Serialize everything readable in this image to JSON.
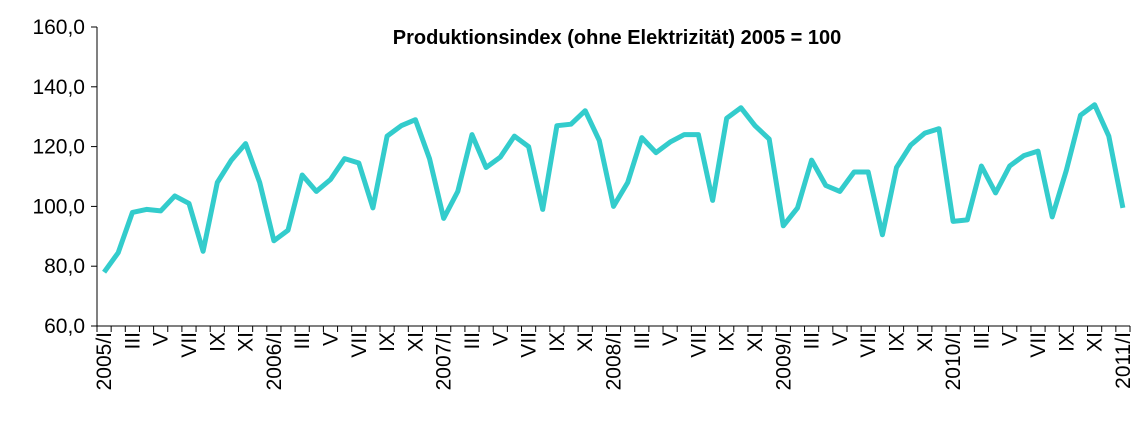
{
  "chart_data": {
    "type": "line",
    "title": "Produktionsindex (ohne Elektrizität) 2005 = 100",
    "categories": [
      "2005/I",
      null,
      "III",
      null,
      "V",
      null,
      "VII",
      null,
      "IX",
      null,
      "XI",
      null,
      "2006/I",
      null,
      "III",
      null,
      "V",
      null,
      "VII",
      null,
      "IX",
      null,
      "XI",
      null,
      "2007/I",
      null,
      "III",
      null,
      "V",
      null,
      "VII",
      null,
      "IX",
      null,
      "XI",
      null,
      "2008/I",
      null,
      "III",
      null,
      "V",
      null,
      "VII",
      null,
      "IX",
      null,
      "XI",
      null,
      "2009/I",
      null,
      "III",
      null,
      "V",
      null,
      "VII",
      null,
      "IX",
      null,
      "XI",
      null,
      "2010/I",
      null,
      "III",
      null,
      "V",
      null,
      "VII",
      null,
      "IX",
      null,
      "XI",
      null,
      "2011/I"
    ],
    "series": [
      {
        "name": "Produktionsindex",
        "color": "#33cccc",
        "values": [
          78,
          84.5,
          98,
          99,
          98.5,
          103.5,
          101,
          85,
          108,
          115.5,
          121,
          108,
          88.5,
          92,
          110.5,
          105,
          109,
          116,
          114.5,
          99.5,
          123.5,
          127,
          129,
          116,
          96,
          105,
          124,
          113,
          116.5,
          123.5,
          120,
          99,
          127,
          127.5,
          132,
          122,
          100,
          108,
          123,
          118,
          121.5,
          124,
          124,
          102,
          129.5,
          133,
          127,
          122.5,
          93.5,
          99.5,
          115.5,
          107,
          105,
          111.5,
          111.5,
          90.5,
          113,
          120.5,
          124.5,
          126,
          95,
          95.5,
          113.5,
          104.5,
          113.5,
          117,
          118.5,
          96.5,
          112,
          130.5,
          134,
          123.5,
          99.5
        ]
      }
    ],
    "ylim": [
      60,
      160
    ],
    "yticks": [
      {
        "value": 60,
        "label": "60,0"
      },
      {
        "value": 80,
        "label": "80,0"
      },
      {
        "value": 100,
        "label": "100,0"
      },
      {
        "value": 120,
        "label": "120,0"
      },
      {
        "value": 140,
        "label": "140,0"
      },
      {
        "value": 160,
        "label": "160,0"
      }
    ]
  }
}
